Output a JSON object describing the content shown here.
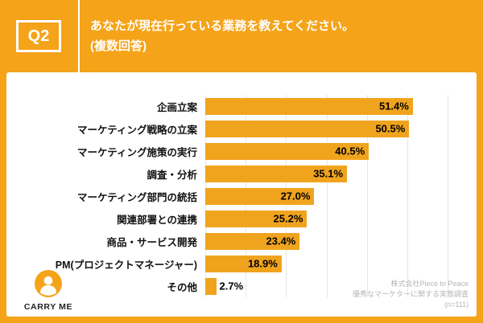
{
  "colors": {
    "page_bg": "#F5A319",
    "bar": "#F0A41E",
    "grid": "#e6e6e6"
  },
  "header": {
    "badge": "Q2",
    "title_line1": "あなたが現在行っている業務を教えてください。",
    "title_line2": "(複数回答)"
  },
  "chart_data": {
    "type": "bar",
    "orientation": "horizontal",
    "title": "あなたが現在行っている業務を教えてください。(複数回答)",
    "xlabel": "",
    "ylabel": "",
    "categories": [
      "企画立案",
      "マーケティング戦略の立案",
      "マーケティング施策の実行",
      "調査・分析",
      "マーケティング部門の統括",
      "関連部署との連携",
      "商品・サービス開発",
      "PM(プロジェクトマネージャー)",
      "その他"
    ],
    "values": [
      51.4,
      50.5,
      40.5,
      35.1,
      27.0,
      25.2,
      23.4,
      18.9,
      2.7
    ],
    "value_labels": [
      "51.4%",
      "50.5%",
      "40.5%",
      "35.1%",
      "27.0%",
      "25.2%",
      "23.4%",
      "18.9%",
      "2.7%"
    ],
    "xlim": [
      0,
      60
    ],
    "gridlines_every": 10,
    "grid": true,
    "legend": false
  },
  "footer": {
    "logo_text": "CARRY ME",
    "source_lines": [
      "株式会社Piece to Peace",
      "優秀なマーケターに関する実態調査",
      "(n=111)"
    ]
  }
}
